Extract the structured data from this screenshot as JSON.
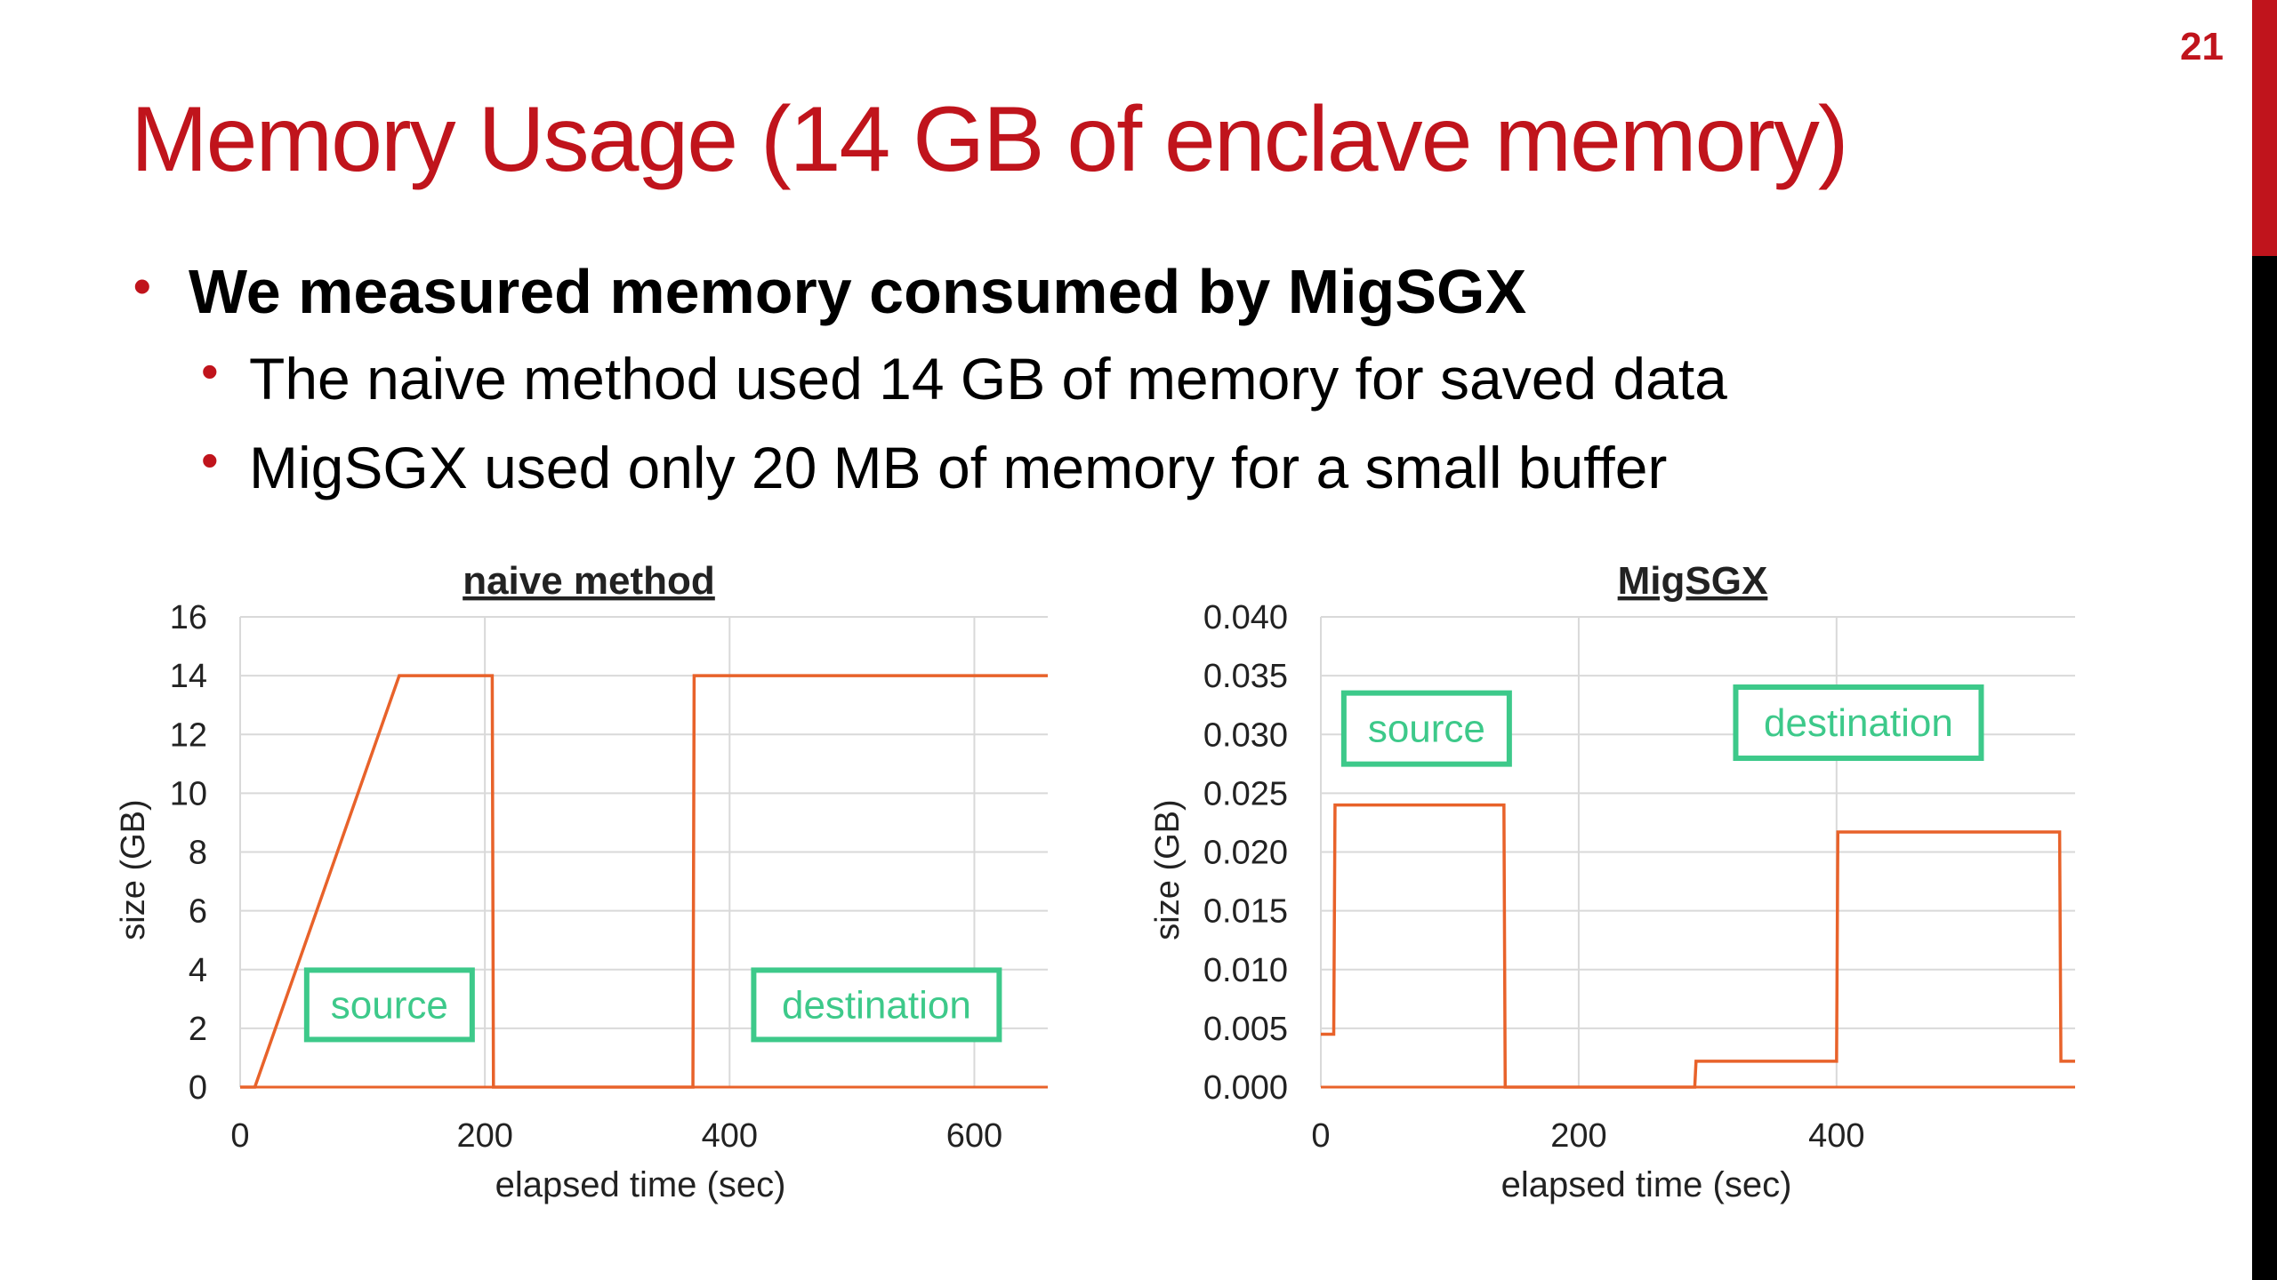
{
  "slide": {
    "page_number": "21",
    "title": "Memory Usage (14 GB of enclave memory)",
    "bullets": {
      "main": "We measured memory consumed by MigSGX",
      "sub": [
        "The naive method used 14 GB of memory for saved data",
        "MigSGX used only 20 MB of memory for a small buffer"
      ]
    },
    "colors": {
      "accent": "#c0141c",
      "series": "#e8622a",
      "annotation": "#3dc98a",
      "grid": "#d9d9d9"
    }
  },
  "chart_data": [
    {
      "type": "line",
      "title": "naive method",
      "xlabel": "elapsed time (sec)",
      "ylabel": "size (GB)",
      "xlim": [
        0,
        660
      ],
      "ylim": [
        0,
        16
      ],
      "xticks": [
        0,
        200,
        400,
        600
      ],
      "yticks": [
        0,
        2,
        4,
        6,
        8,
        10,
        12,
        14,
        16
      ],
      "ytick_labels": [
        "0",
        "2",
        "4",
        "6",
        "8",
        "10",
        "12",
        "14",
        "16"
      ],
      "grid": true,
      "series": [
        {
          "x": [
            0,
            12,
            130,
            206,
            207,
            370,
            371,
            660
          ],
          "y": [
            0,
            0,
            14,
            14,
            0,
            0,
            14,
            14
          ]
        },
        {
          "x": [
            0,
            660
          ],
          "y": [
            0,
            0
          ]
        }
      ],
      "annotations": [
        {
          "text": "source",
          "x": 122,
          "y": 2.8
        },
        {
          "text": "destination",
          "x": 520,
          "y": 2.8
        }
      ]
    },
    {
      "type": "line",
      "title": "MigSGX",
      "xlabel": "elapsed time (sec)",
      "ylabel": "size (GB)",
      "xlim": [
        0,
        585
      ],
      "ylim": [
        0,
        0.04
      ],
      "xticks": [
        0,
        200,
        400
      ],
      "yticks": [
        0,
        0.005,
        0.01,
        0.015,
        0.02,
        0.025,
        0.03,
        0.035,
        0.04
      ],
      "ytick_labels": [
        "0.000",
        "0.005",
        "0.010",
        "0.015",
        "0.020",
        "0.025",
        "0.030",
        "0.035",
        "0.040"
      ],
      "grid": true,
      "series": [
        {
          "x": [
            0,
            10,
            11,
            142,
            143,
            290,
            291,
            400,
            401,
            573,
            574,
            585
          ],
          "y": [
            0.0045,
            0.0045,
            0.024,
            0.024,
            0,
            0,
            0.0022,
            0.0022,
            0.0217,
            0.0217,
            0.0022,
            0.0022
          ]
        },
        {
          "x": [
            0,
            585
          ],
          "y": [
            0,
            0
          ]
        }
      ],
      "annotations": [
        {
          "text": "source",
          "x": 82,
          "y": 0.0305
        },
        {
          "text": "destination",
          "x": 417,
          "y": 0.031
        }
      ]
    }
  ]
}
